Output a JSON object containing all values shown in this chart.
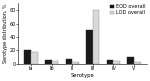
{
  "serotypes": [
    "Ia",
    "Ib",
    "II",
    "III",
    "IV",
    "V"
  ],
  "eod": [
    21,
    6,
    7,
    50,
    5,
    10
  ],
  "lod": [
    17,
    4,
    3,
    80,
    4,
    2
  ],
  "eod_label": "EOD overall",
  "lod_label": "LOD overall",
  "eod_color": "#1a1a1a",
  "lod_color": "#d8d8d8",
  "ylabel": "Serotype distribution, %",
  "xlabel": "Serotype",
  "ylim": [
    0,
    90
  ],
  "yticks": [
    0,
    20,
    40,
    60,
    80
  ],
  "bar_width": 0.32,
  "legend_fontsize": 3.6,
  "tick_fontsize": 3.5,
  "label_fontsize": 3.8,
  "ylabel_fontsize": 3.5
}
